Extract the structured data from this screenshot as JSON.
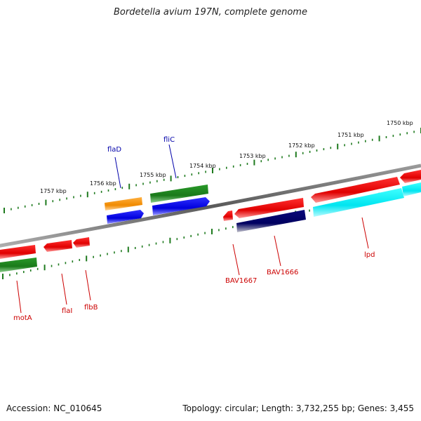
{
  "title": "Bordetella avium 197N, complete genome",
  "accession": "Accession: NC_010645",
  "summary": "Topology: circular; Length: 3,732,255 bp; Genes: 3,455",
  "colors": {
    "backbone": "#808080",
    "ticks": "#1e7a1e",
    "label_red": "#cc0000",
    "label_blue": "#0000aa"
  },
  "kbp_labels": [
    {
      "text": "1750 kbp",
      "kbp": 1750
    },
    {
      "text": "1751 kbp",
      "kbp": 1751
    },
    {
      "text": "1752 kbp",
      "kbp": 1752
    },
    {
      "text": "1753 kbp",
      "kbp": 1753
    },
    {
      "text": "1754 kbp",
      "kbp": 1754
    },
    {
      "text": "1755 kbp",
      "kbp": 1755
    },
    {
      "text": "1756 kbp",
      "kbp": 1756
    },
    {
      "text": "1757 kbp",
      "kbp": 1757
    }
  ],
  "genes": [
    {
      "name": "flaD",
      "label_color": "blue"
    },
    {
      "name": "fliC",
      "label_color": "blue"
    },
    {
      "name": "motA",
      "label_color": "red"
    },
    {
      "name": "flaI",
      "label_color": "red"
    },
    {
      "name": "flbB",
      "label_color": "red"
    },
    {
      "name": "BAV1667",
      "label_color": "red"
    },
    {
      "name": "BAV1666",
      "label_color": "red"
    },
    {
      "name": "lpd",
      "label_color": "red"
    }
  ]
}
